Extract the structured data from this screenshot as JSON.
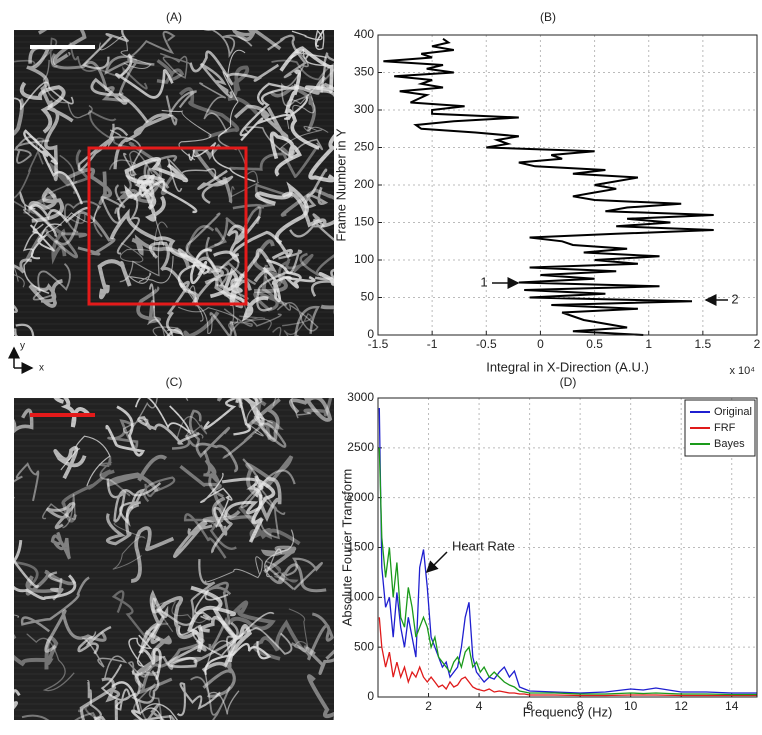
{
  "images": [
    {
      "label": "(A)"
    },
    {
      "label": "(C)"
    }
  ],
  "orientation_indicator": {
    "y": "y",
    "x": "x"
  },
  "chart_data": [
    {
      "type": "line",
      "title": "(B)",
      "xlabel": "Integral in X-Direction (A.U.)",
      "ylabel": "Frame Number in Y",
      "x_multiplier": "x 10⁴",
      "xlim": [
        -1.5,
        2
      ],
      "xticks": [
        -1.5,
        -1,
        -0.5,
        0,
        0.5,
        1,
        1.5,
        2
      ],
      "ylim": [
        0,
        400
      ],
      "yticks": [
        0,
        50,
        100,
        150,
        200,
        250,
        300,
        350,
        400
      ],
      "grid": true,
      "orientation": "vertical",
      "y": [
        0,
        5,
        10,
        20,
        30,
        35,
        40,
        45,
        50,
        55,
        60,
        65,
        70,
        75,
        80,
        85,
        90,
        95,
        100,
        105,
        110,
        115,
        120,
        125,
        130,
        135,
        140,
        145,
        150,
        155,
        160,
        165,
        170,
        175,
        180,
        185,
        190,
        195,
        200,
        210,
        215,
        220,
        225,
        230,
        235,
        240,
        245,
        250,
        255,
        260,
        265,
        270,
        275,
        280,
        285,
        290,
        295,
        300,
        305,
        310,
        320,
        325,
        330,
        335,
        340,
        345,
        350,
        355,
        360,
        365,
        370,
        375,
        380,
        385,
        390,
        395
      ],
      "series": [
        {
          "color": "#000000",
          "values": [
            0.95,
            0.3,
            0.8,
            0.4,
            0.2,
            0.9,
            0.1,
            1.4,
            -0.1,
            0.6,
            -0.15,
            1.1,
            -0.2,
            0.5,
            0.0,
            0.7,
            -0.1,
            0.9,
            0.5,
            1.1,
            0.4,
            0.8,
            0.3,
            0.2,
            -0.1,
            0.7,
            1.6,
            0.7,
            1.2,
            0.8,
            1.6,
            0.6,
            0.8,
            1.3,
            0.5,
            0.3,
            0.5,
            0.7,
            0.5,
            0.9,
            0.3,
            0.6,
            -0.05,
            -0.2,
            0.2,
            0.1,
            0.5,
            -0.5,
            -0.3,
            -0.4,
            -0.2,
            -0.6,
            -1.1,
            -1.15,
            -0.8,
            -0.2,
            -1.0,
            -1.0,
            -0.7,
            -1.2,
            -1.05,
            -1.3,
            -0.9,
            -1.1,
            -1.0,
            -1.35,
            -0.8,
            -1.05,
            -0.9,
            -1.45,
            -1.0,
            -1.1,
            -0.8,
            -1.0,
            -0.85,
            -0.9
          ]
        }
      ],
      "annotations": [
        {
          "text": "1"
        },
        {
          "text": "2"
        }
      ]
    },
    {
      "type": "line",
      "title": "(D)",
      "xlabel": "Frequency (Hz)",
      "ylabel": "Absolute Fourier Transform",
      "xlim": [
        0,
        15
      ],
      "xticks": [
        2,
        4,
        6,
        8,
        10,
        12,
        14
      ],
      "ylim": [
        0,
        3000
      ],
      "yticks": [
        0,
        500,
        1000,
        1500,
        2000,
        2500,
        3000
      ],
      "grid": true,
      "legend": "upper right",
      "x": [
        0.05,
        0.15,
        0.3,
        0.45,
        0.6,
        0.75,
        0.9,
        1.05,
        1.2,
        1.35,
        1.5,
        1.65,
        1.8,
        1.95,
        2.1,
        2.25,
        2.4,
        2.55,
        2.7,
        2.85,
        3.0,
        3.15,
        3.3,
        3.45,
        3.6,
        3.75,
        3.9,
        4.05,
        4.2,
        4.4,
        4.6,
        4.8,
        5.0,
        5.2,
        5.4,
        5.6,
        5.8,
        6,
        7,
        8,
        9,
        10,
        10.5,
        11,
        12,
        13,
        14,
        15
      ],
      "series": [
        {
          "name": "Original",
          "color": "#1f1fd0",
          "values": [
            2900,
            1300,
            900,
            1000,
            600,
            1050,
            700,
            500,
            800,
            600,
            400,
            1300,
            1480,
            1100,
            600,
            500,
            400,
            300,
            350,
            200,
            250,
            300,
            500,
            800,
            950,
            400,
            250,
            200,
            150,
            200,
            180,
            250,
            300,
            200,
            260,
            100,
            80,
            60,
            50,
            40,
            50,
            80,
            70,
            90,
            50,
            50,
            40,
            40
          ]
        },
        {
          "name": "FRF",
          "color": "#e01a1a",
          "values": [
            800,
            500,
            300,
            450,
            200,
            350,
            200,
            300,
            150,
            250,
            200,
            300,
            200,
            150,
            200,
            150,
            100,
            120,
            80,
            150,
            100,
            120,
            180,
            200,
            150,
            100,
            80,
            70,
            60,
            80,
            50,
            60,
            50,
            40,
            40,
            30,
            30,
            20,
            20,
            15,
            15,
            20,
            20,
            20,
            15,
            15,
            15,
            15
          ]
        },
        {
          "name": "Bayes",
          "color": "#1a9a1a",
          "values": [
            2500,
            1600,
            1200,
            1500,
            1000,
            1350,
            800,
            700,
            1100,
            900,
            600,
            700,
            800,
            700,
            500,
            600,
            400,
            350,
            300,
            250,
            350,
            400,
            300,
            450,
            500,
            300,
            350,
            250,
            300,
            200,
            250,
            200,
            150,
            120,
            100,
            60,
            50,
            40,
            40,
            30,
            30,
            40,
            35,
            40,
            30,
            30,
            25,
            25
          ]
        }
      ],
      "annotations": [
        {
          "text": "Heart Rate"
        }
      ]
    }
  ]
}
